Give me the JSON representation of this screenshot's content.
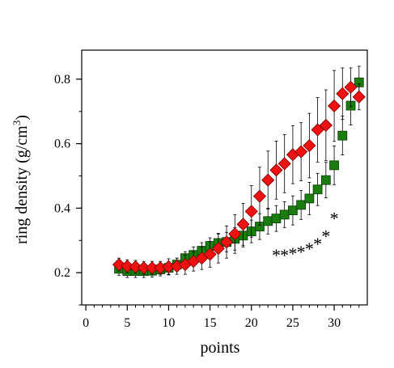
{
  "chart_data": {
    "type": "scatter",
    "title": "",
    "xlabel": "points",
    "ylabel": "ring density (g/cm",
    "ylabel_superscript": "3",
    "ylabel_suffix": ")",
    "xlim": [
      -0.5,
      34
    ],
    "ylim": [
      0.1,
      0.89
    ],
    "x_ticks": [
      0,
      5,
      10,
      15,
      20,
      25,
      30
    ],
    "y_ticks": [
      0.2,
      0.4,
      0.6,
      0.8
    ],
    "y_tick_labels": [
      "0.2",
      "0.4",
      "0.6",
      "0.8"
    ],
    "legend": "none",
    "grid": false,
    "series": [
      {
        "marker": "square",
        "color": "#1a7d0d",
        "x": [
          4,
          5,
          6,
          7,
          8,
          9,
          10,
          11,
          12,
          13,
          14,
          15,
          16,
          17,
          18,
          19,
          20,
          21,
          22,
          23,
          24,
          25,
          26,
          27,
          28,
          29,
          30,
          31,
          32,
          33
        ],
        "y": [
          0.212,
          0.205,
          0.205,
          0.205,
          0.206,
          0.21,
          0.215,
          0.225,
          0.245,
          0.255,
          0.268,
          0.283,
          0.292,
          0.295,
          0.305,
          0.315,
          0.328,
          0.343,
          0.36,
          0.368,
          0.38,
          0.393,
          0.41,
          0.43,
          0.458,
          0.487,
          0.533,
          0.625,
          0.718,
          0.79
        ],
        "err": [
          0.02,
          0.02,
          0.02,
          0.02,
          0.02,
          0.02,
          0.02,
          0.02,
          0.02,
          0.025,
          0.025,
          0.025,
          0.03,
          0.03,
          0.035,
          0.035,
          0.035,
          0.04,
          0.04,
          0.04,
          0.04,
          0.045,
          0.045,
          0.05,
          0.05,
          0.055,
          0.06,
          0.06,
          0.06,
          0.05
        ]
      },
      {
        "marker": "diamond",
        "color": "#ee1111",
        "x": [
          4,
          5,
          6,
          7,
          8,
          9,
          10,
          11,
          12,
          13,
          14,
          15,
          16,
          17,
          18,
          19,
          20,
          21,
          22,
          23,
          24,
          25,
          26,
          27,
          28,
          29,
          30,
          31,
          32,
          33
        ],
        "y": [
          0.225,
          0.22,
          0.218,
          0.215,
          0.215,
          0.215,
          0.218,
          0.22,
          0.225,
          0.235,
          0.245,
          0.257,
          0.275,
          0.295,
          0.32,
          0.35,
          0.39,
          0.437,
          0.487,
          0.518,
          0.538,
          0.566,
          0.575,
          0.594,
          0.643,
          0.657,
          0.717,
          0.755,
          0.775,
          0.745
        ],
        "err": [
          0.02,
          0.02,
          0.02,
          0.02,
          0.02,
          0.02,
          0.025,
          0.025,
          0.03,
          0.03,
          0.035,
          0.04,
          0.045,
          0.05,
          0.06,
          0.065,
          0.08,
          0.09,
          0.09,
          0.09,
          0.09,
          0.09,
          0.09,
          0.1,
          0.1,
          0.11,
          0.11,
          0.08,
          0.06,
          0.04
        ]
      }
    ],
    "annotations": [
      {
        "text": "*",
        "x": 23,
        "y": 0.26
      },
      {
        "text": "*",
        "x": 24,
        "y": 0.26
      },
      {
        "text": "*",
        "x": 25,
        "y": 0.265
      },
      {
        "text": "*",
        "x": 26,
        "y": 0.27
      },
      {
        "text": "*",
        "x": 27,
        "y": 0.28
      },
      {
        "text": "*",
        "x": 28,
        "y": 0.295
      },
      {
        "text": "*",
        "x": 29,
        "y": 0.32
      },
      {
        "text": "*",
        "x": 30,
        "y": 0.375
      }
    ]
  }
}
